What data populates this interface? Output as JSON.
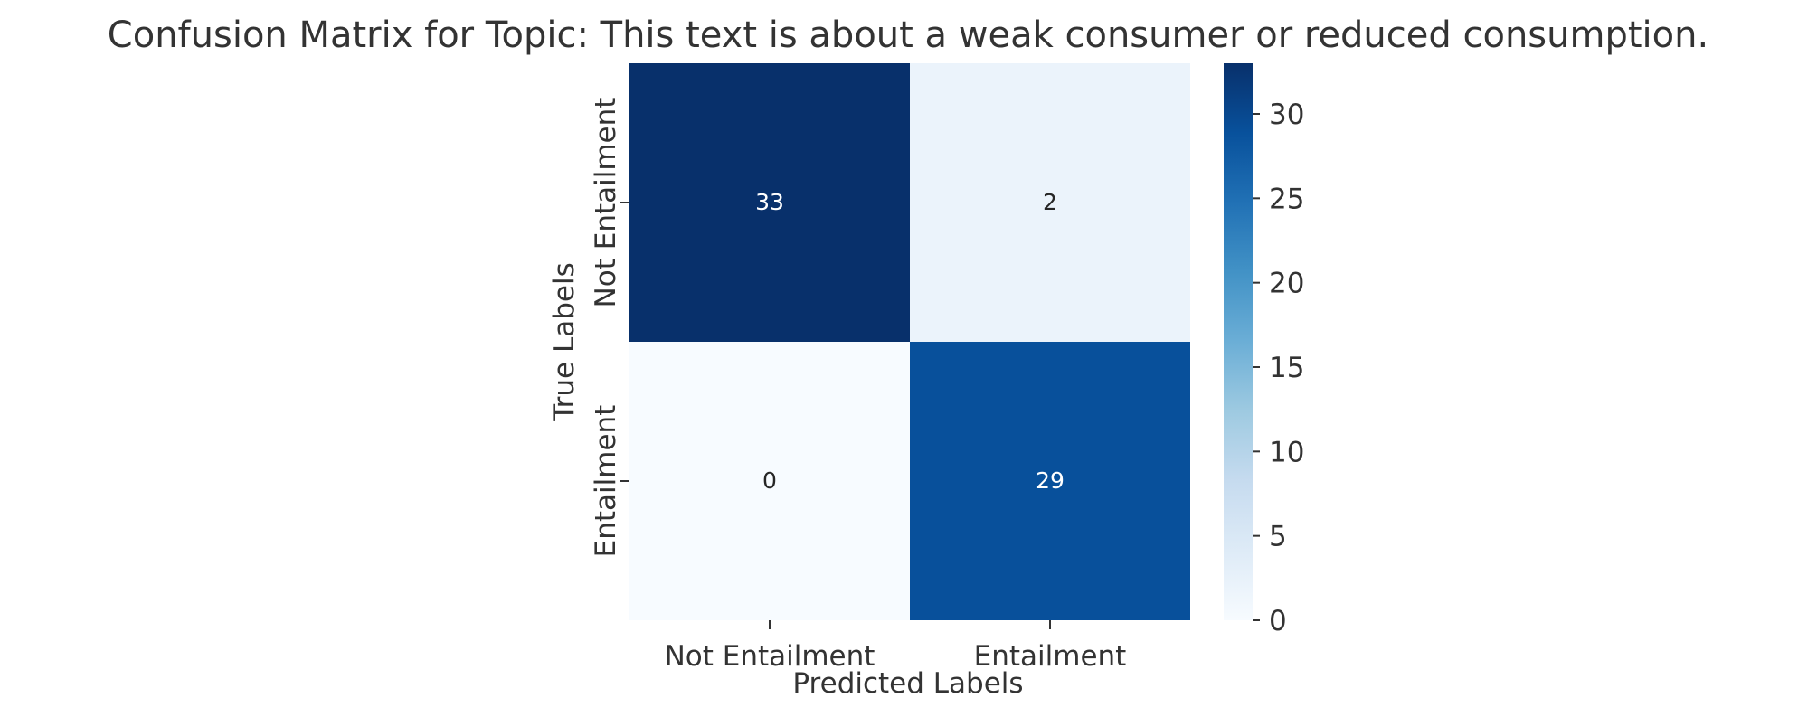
{
  "chart_data": {
    "type": "heatmap",
    "title": "Confusion Matrix for Topic: This text is about a weak consumer or reduced consumption.",
    "xlabel": "Predicted Labels",
    "ylabel": "True Labels",
    "x_categories": [
      "Not Entailment",
      "Entailment"
    ],
    "y_categories": [
      "Not Entailment",
      "Entailment"
    ],
    "values": [
      [
        33,
        2
      ],
      [
        0,
        29
      ]
    ],
    "colormap": "Blues",
    "colorbar": {
      "min": 0,
      "max": 33,
      "ticks": [
        0,
        5,
        10,
        15,
        20,
        25,
        30
      ]
    }
  },
  "colors": {
    "text": "#333333",
    "cell_text_dark_bg": "#ffffff",
    "cell_text_light_bg": "#262626"
  }
}
